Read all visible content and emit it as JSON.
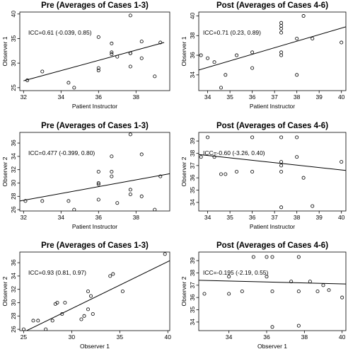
{
  "chart_data": [
    {
      "type": "scatter",
      "title": "Pre (Averages of Cases 1-3)",
      "xlabel": "Patient Instructor",
      "ylabel": "Observer 1",
      "annotation": "ICC=0.61 (-0.039, 0.85)",
      "xlim": [
        31.8,
        39.8
      ],
      "ylim": [
        24.4,
        40.4
      ],
      "xticks": [
        32,
        34,
        36,
        38
      ],
      "yticks": [
        25,
        30,
        35,
        40
      ],
      "grid": false,
      "regression_line": {
        "x": [
          32,
          39.5
        ],
        "y": [
          26.4,
          34.2
        ]
      },
      "x": [
        32.2,
        33,
        34.4,
        34.7,
        36,
        36,
        36,
        36.7,
        36.7,
        36.7,
        37,
        37.7,
        37.7,
        37.7,
        37.7,
        38.3,
        38.3,
        39,
        39.3
      ],
      "y": [
        26.5,
        28.3,
        26,
        25,
        35.3,
        29,
        28.5,
        34,
        32.2,
        31.8,
        31.3,
        39.7,
        32,
        29.3,
        32,
        34.4,
        31,
        27.3,
        34.2
      ]
    },
    {
      "type": "scatter",
      "title": "Post (Averages of Cases 4-6)",
      "xlabel": "Patient Instructor",
      "ylabel": "Observer 1",
      "annotation": "ICC=0.71 (0.23, 0.89)",
      "xlim": [
        33.6,
        40.2
      ],
      "ylim": [
        32.4,
        40.4
      ],
      "xticks": [
        34,
        35,
        36,
        37,
        38,
        39,
        40
      ],
      "yticks": [
        34,
        36,
        38,
        40
      ],
      "grid": false,
      "regression_line": {
        "x": [
          33.6,
          40.2
        ],
        "y": [
          34.5,
          38.9
        ]
      },
      "x": [
        33.7,
        34,
        34.3,
        34.6,
        34.8,
        35.3,
        36,
        36,
        37.3,
        37.3,
        37.3,
        37.3,
        37.3,
        37.3,
        38,
        38,
        38.3,
        38.7,
        40
      ],
      "y": [
        36,
        35.7,
        35.3,
        32.7,
        34,
        36,
        36.3,
        34.7,
        39.3,
        39,
        38.7,
        38.3,
        36.3,
        36,
        34,
        37.7,
        40,
        37.7,
        37.3
      ]
    },
    {
      "type": "scatter",
      "title": "Pre (Averages of Cases 1-3)",
      "xlabel": "Patient Instructor",
      "ylabel": "Observer 2",
      "annotation": "ICC=0.477 (-0.399, 0.80)",
      "xlim": [
        31.8,
        39.8
      ],
      "ylim": [
        25.8,
        37.6
      ],
      "xticks": [
        32,
        34,
        36,
        38
      ],
      "yticks": [
        26,
        28,
        30,
        32,
        34,
        36
      ],
      "grid": false,
      "regression_line": {
        "x": [
          31.8,
          39.8
        ],
        "y": [
          27.3,
          31.4
        ]
      },
      "x": [
        32.1,
        33,
        34.4,
        34.7,
        36,
        36,
        36,
        36,
        36.7,
        36.7,
        36.7,
        37,
        37.7,
        37.7,
        37.7,
        38.3,
        38.3,
        39,
        39.3
      ],
      "y": [
        27.3,
        27.3,
        27.3,
        26,
        31.7,
        30,
        29.8,
        27.5,
        34,
        31.7,
        31,
        27,
        37.3,
        29,
        28.3,
        34.3,
        28,
        26,
        31
      ]
    },
    {
      "type": "scatter",
      "title": "Post (Averages of Cases 4-6)",
      "xlabel": "Patient Instructor",
      "ylabel": "Observer 2",
      "annotation": "ICC=-0.60 (-3.26, 0.40)",
      "xlim": [
        33.6,
        40.2
      ],
      "ylim": [
        33.3,
        39.7
      ],
      "xticks": [
        34,
        35,
        36,
        37,
        38,
        39,
        40
      ],
      "yticks": [
        34,
        35,
        36,
        37,
        38,
        39
      ],
      "grid": false,
      "regression_line": {
        "x": [
          33.6,
          40.2
        ],
        "y": [
          37.9,
          36.6
        ]
      },
      "x": [
        33.7,
        34,
        34.3,
        34.6,
        34.8,
        35.3,
        36,
        36,
        37.3,
        37.3,
        37.3,
        37.3,
        37.3,
        38,
        38,
        38.3,
        38.7,
        40
      ],
      "y": [
        37.7,
        39.3,
        37.7,
        36.3,
        36.3,
        36.5,
        39.3,
        36.5,
        39.3,
        37.3,
        37,
        36.5,
        33.6,
        39.3,
        37.7,
        36,
        33.7,
        37.3
      ]
    },
    {
      "type": "scatter",
      "title": "Pre (Averages of Cases 1-3)",
      "xlabel": "Observer 1",
      "ylabel": "Observer 2",
      "annotation": "ICC=0.93 (0.81, 0.97)",
      "xlim": [
        24.6,
        40.2
      ],
      "ylim": [
        25.8,
        37.6
      ],
      "xticks": [
        25,
        30,
        35,
        40
      ],
      "yticks": [
        26,
        28,
        30,
        32,
        34,
        36
      ],
      "grid": false,
      "regression_line": {
        "x": [
          24.6,
          40.2
        ],
        "y": [
          25.3,
          36.3
        ]
      },
      "x": [
        25,
        26,
        26.5,
        27.3,
        28,
        28.3,
        28.5,
        29,
        29.3,
        31,
        31.3,
        31.7,
        31.7,
        32,
        32.2,
        34,
        34.3,
        35.3,
        39.7
      ],
      "y": [
        26,
        27.3,
        27.3,
        26,
        27.3,
        29.8,
        30,
        28.3,
        30,
        27.5,
        28,
        31.7,
        29,
        31,
        28.3,
        34,
        34.3,
        31.7,
        37.3
      ]
    },
    {
      "type": "scatter",
      "title": "Post (Averages of Cases 4-6)",
      "xlabel": "Observer 1",
      "ylabel": "Observer 2",
      "annotation": "ICC=-0.195 (-2.19, 0.55)",
      "xlim": [
        32.4,
        40.2
      ],
      "ylim": [
        33.3,
        39.7
      ],
      "xticks": [
        34,
        36,
        38,
        40
      ],
      "yticks": [
        34,
        35,
        36,
        37,
        38,
        39
      ],
      "grid": false,
      "regression_line": {
        "x": [
          32.4,
          40.2
        ],
        "y": [
          37.4,
          37.1
        ]
      },
      "x": [
        32.7,
        34,
        34,
        34.7,
        35.3,
        36,
        36,
        36.3,
        36.3,
        36.3,
        37.3,
        37.7,
        37.7,
        37.7,
        38.3,
        38.7,
        39,
        39.3,
        40
      ],
      "y": [
        36.3,
        37.7,
        36.3,
        36.5,
        39.3,
        37.7,
        39.3,
        36.5,
        39.3,
        33.6,
        37.3,
        39.3,
        36.5,
        33.7,
        37.3,
        36.5,
        37,
        36.6,
        36
      ]
    }
  ]
}
